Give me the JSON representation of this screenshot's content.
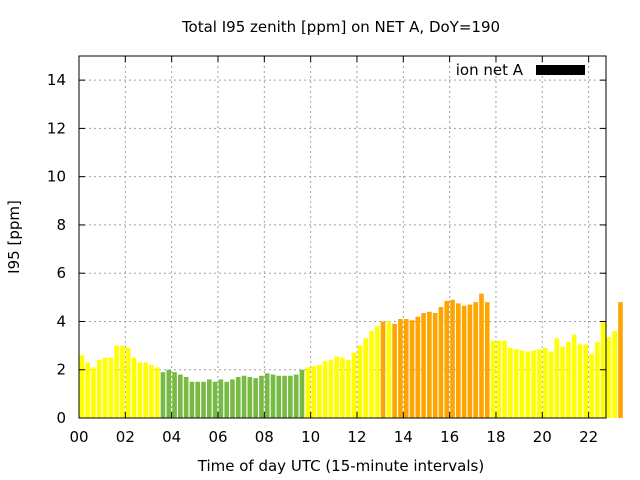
{
  "chart_data": {
    "type": "bar",
    "title": "Total I95 zenith [ppm] on NET A, DoY=190",
    "xlabel": "Time of day UTC (15-minute intervals)",
    "ylabel": "I95 [ppm]",
    "xlim": [
      0,
      22.75
    ],
    "ylim": [
      0,
      15
    ],
    "x_interval_hours": 0.25,
    "xticks": [
      0,
      2,
      4,
      6,
      8,
      10,
      12,
      14,
      16,
      18,
      20,
      22
    ],
    "xtick_labels": [
      "00",
      "02",
      "04",
      "06",
      "08",
      "10",
      "12",
      "14",
      "16",
      "18",
      "20",
      "22"
    ],
    "yticks": [
      0,
      2,
      4,
      6,
      8,
      10,
      12,
      14
    ],
    "ytick_labels": [
      "0",
      "2",
      "4",
      "6",
      "8",
      "10",
      "12",
      "14"
    ],
    "grid": true,
    "legend": {
      "label": "ion net A",
      "color": "#000000",
      "placement": "top-right"
    },
    "level_colors": {
      "yellow": "#ffff00",
      "green": "#77bb44",
      "orange": "#ffa500"
    },
    "series": [
      {
        "values": [
          2.6,
          2.3,
          2.1,
          2.4,
          2.5,
          2.5,
          3.0,
          3.0,
          2.9,
          2.5,
          2.3,
          2.3,
          2.2,
          2.1,
          1.9,
          2.0,
          1.9,
          1.8,
          1.7,
          1.5,
          1.5,
          1.5,
          1.6,
          1.5,
          1.6,
          1.5,
          1.6,
          1.7,
          1.75,
          1.7,
          1.65,
          1.75,
          1.85,
          1.8,
          1.75,
          1.75,
          1.75,
          1.8,
          2.0,
          2.1,
          2.15,
          2.2,
          2.35,
          2.4,
          2.55,
          2.5,
          2.4,
          2.7,
          3.0,
          3.3,
          3.6,
          3.8,
          4.0,
          4.0,
          3.9,
          4.1,
          4.1,
          4.05,
          4.2,
          4.35,
          4.4,
          4.35,
          4.6,
          4.85,
          4.9,
          4.75,
          4.65,
          4.7,
          4.8,
          5.15,
          4.8,
          3.2,
          3.2,
          3.2,
          2.9,
          2.85,
          2.8,
          2.75,
          2.8,
          2.85,
          2.9,
          2.75,
          3.3,
          2.95,
          3.15,
          3.45,
          3.05,
          3.05,
          2.65,
          3.15,
          4.0,
          3.35,
          3.6,
          4.8
        ],
        "colors": [
          "yellow",
          "yellow",
          "yellow",
          "yellow",
          "yellow",
          "yellow",
          "yellow",
          "yellow",
          "yellow",
          "yellow",
          "yellow",
          "yellow",
          "yellow",
          "yellow",
          "green",
          "green",
          "green",
          "green",
          "green",
          "green",
          "green",
          "green",
          "green",
          "green",
          "green",
          "green",
          "green",
          "green",
          "green",
          "green",
          "green",
          "green",
          "green",
          "green",
          "green",
          "green",
          "green",
          "green",
          "green",
          "yellow",
          "yellow",
          "yellow",
          "yellow",
          "yellow",
          "yellow",
          "yellow",
          "yellow",
          "yellow",
          "yellow",
          "yellow",
          "yellow",
          "yellow",
          "orange",
          "yellow",
          "orange",
          "orange",
          "orange",
          "orange",
          "orange",
          "orange",
          "orange",
          "orange",
          "orange",
          "orange",
          "orange",
          "orange",
          "orange",
          "orange",
          "orange",
          "orange",
          "orange",
          "yellow",
          "yellow",
          "yellow",
          "yellow",
          "yellow",
          "yellow",
          "yellow",
          "yellow",
          "yellow",
          "yellow",
          "yellow",
          "yellow",
          "yellow",
          "yellow",
          "yellow",
          "yellow",
          "yellow",
          "yellow",
          "yellow",
          "yellow",
          "yellow",
          "yellow",
          "orange"
        ]
      }
    ]
  }
}
